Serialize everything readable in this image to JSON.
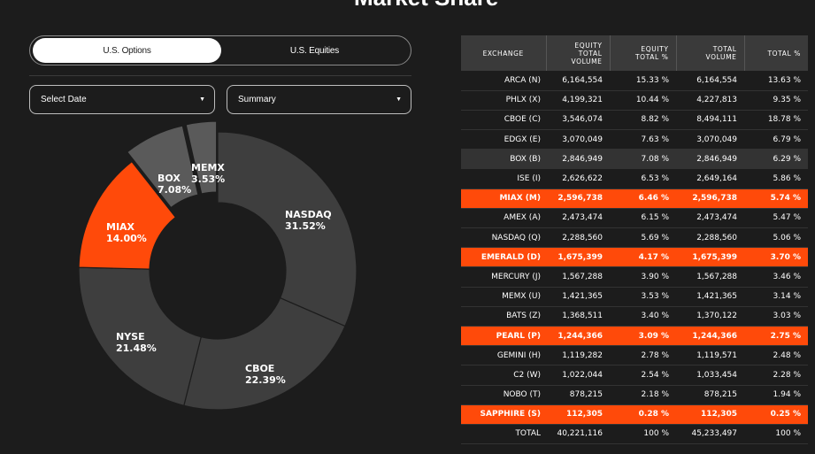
{
  "page": {
    "title": "Market Share"
  },
  "toggle": {
    "options_label": "U.S. Options",
    "equities_label": "U.S. Equities",
    "selected": "U.S. Options"
  },
  "filters": {
    "date_label": "Select Date",
    "view_label": "Summary"
  },
  "colors": {
    "background": "#1c1c1c",
    "accent": "#ff4a0a",
    "slice_dark": "#3e3e3e",
    "slice_mid": "#5a5a5a",
    "table_header": "#3a3a3a",
    "row_shaded": "#333333"
  },
  "chart_data": {
    "type": "pie",
    "donut": true,
    "title": "",
    "slices": [
      {
        "label": "NASDAQ",
        "value": 31.52,
        "text": "31.52%",
        "color": "#3e3e3e"
      },
      {
        "label": "CBOE",
        "value": 22.39,
        "text": "22.39%",
        "color": "#3e3e3e"
      },
      {
        "label": "NYSE",
        "value": 21.48,
        "text": "21.48%",
        "color": "#3e3e3e"
      },
      {
        "label": "MIAX",
        "value": 14.0,
        "text": "14.00%",
        "color": "#ff4a0a"
      },
      {
        "label": "BOX",
        "value": 7.08,
        "text": "7.08%",
        "color": "#5a5a5a"
      },
      {
        "label": "MEMX",
        "value": 3.53,
        "text": "3.53%",
        "color": "#5a5a5a"
      }
    ]
  },
  "table": {
    "headers": [
      [
        "EXCHANGE"
      ],
      [
        "EQUITY",
        "TOTAL",
        "VOLUME"
      ],
      [
        "EQUITY",
        "TOTAL %"
      ],
      [
        "TOTAL",
        "VOLUME"
      ],
      [
        "TOTAL %"
      ]
    ],
    "rows": [
      {
        "cells": [
          "ARCA (N)",
          "6,164,554",
          "15.33 %",
          "6,164,554",
          "13.63 %"
        ],
        "style": "normal"
      },
      {
        "cells": [
          "PHLX (X)",
          "4,199,321",
          "10.44 %",
          "4,227,813",
          "9.35 %"
        ],
        "style": "normal"
      },
      {
        "cells": [
          "CBOE (C)",
          "3,546,074",
          "8.82 %",
          "8,494,111",
          "18.78 %"
        ],
        "style": "normal"
      },
      {
        "cells": [
          "EDGX (E)",
          "3,070,049",
          "7.63 %",
          "3,070,049",
          "6.79 %"
        ],
        "style": "normal"
      },
      {
        "cells": [
          "BOX (B)",
          "2,846,949",
          "7.08 %",
          "2,846,949",
          "6.29 %"
        ],
        "style": "shaded"
      },
      {
        "cells": [
          "ISE (I)",
          "2,626,622",
          "6.53 %",
          "2,649,164",
          "5.86 %"
        ],
        "style": "normal"
      },
      {
        "cells": [
          "MIAX (M)",
          "2,596,738",
          "6.46 %",
          "2,596,738",
          "5.74 %"
        ],
        "style": "highlight"
      },
      {
        "cells": [
          "AMEX (A)",
          "2,473,474",
          "6.15 %",
          "2,473,474",
          "5.47 %"
        ],
        "style": "normal"
      },
      {
        "cells": [
          "NASDAQ (Q)",
          "2,288,560",
          "5.69 %",
          "2,288,560",
          "5.06 %"
        ],
        "style": "normal"
      },
      {
        "cells": [
          "EMERALD (D)",
          "1,675,399",
          "4.17 %",
          "1,675,399",
          "3.70 %"
        ],
        "style": "highlight"
      },
      {
        "cells": [
          "MERCURY (J)",
          "1,567,288",
          "3.90 %",
          "1,567,288",
          "3.46 %"
        ],
        "style": "normal"
      },
      {
        "cells": [
          "MEMX (U)",
          "1,421,365",
          "3.53 %",
          "1,421,365",
          "3.14 %"
        ],
        "style": "normal"
      },
      {
        "cells": [
          "BATS (Z)",
          "1,368,511",
          "3.40 %",
          "1,370,122",
          "3.03 %"
        ],
        "style": "normal"
      },
      {
        "cells": [
          "PEARL (P)",
          "1,244,366",
          "3.09 %",
          "1,244,366",
          "2.75 %"
        ],
        "style": "highlight"
      },
      {
        "cells": [
          "GEMINI (H)",
          "1,119,282",
          "2.78 %",
          "1,119,571",
          "2.48 %"
        ],
        "style": "normal"
      },
      {
        "cells": [
          "C2 (W)",
          "1,022,044",
          "2.54 %",
          "1,033,454",
          "2.28 %"
        ],
        "style": "normal"
      },
      {
        "cells": [
          "NOBO (T)",
          "878,215",
          "2.18 %",
          "878,215",
          "1.94 %"
        ],
        "style": "normal"
      },
      {
        "cells": [
          "SAPPHIRE (S)",
          "112,305",
          "0.28 %",
          "112,305",
          "0.25 %"
        ],
        "style": "highlight"
      },
      {
        "cells": [
          "TOTAL",
          "40,221,116",
          "100 %",
          "45,233,497",
          "100 %"
        ],
        "style": "total"
      }
    ]
  }
}
